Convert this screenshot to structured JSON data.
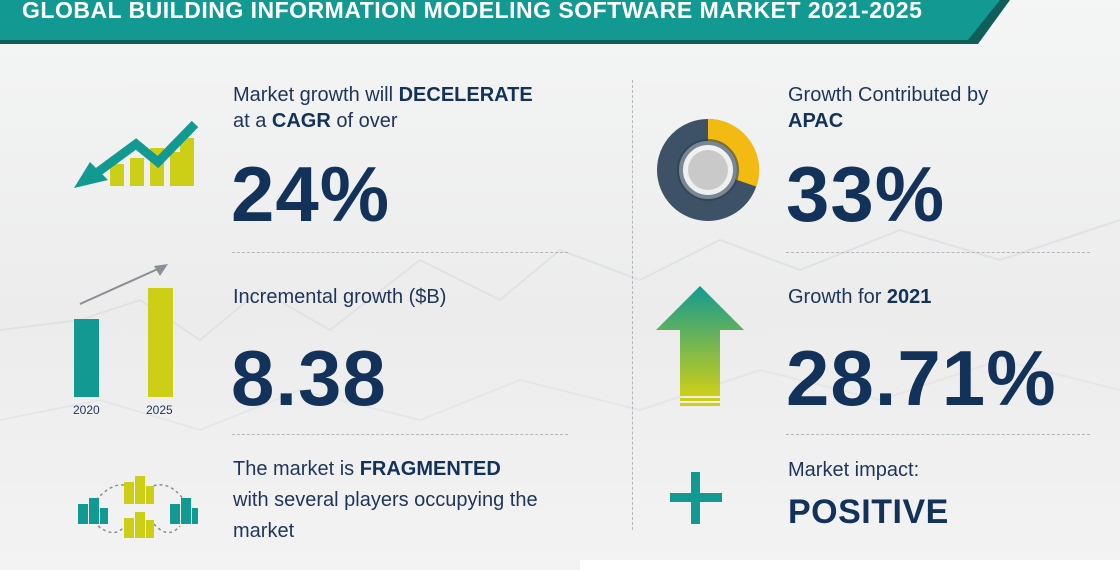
{
  "title": "GLOBAL BUILDING INFORMATION MODELING SOFTWARE MARKET 2021-2025",
  "colors": {
    "teal": "#129a92",
    "lime": "#cdcf17",
    "navy": "#12325a",
    "gold": "#f3bb11",
    "slate": "#3d5266"
  },
  "left": {
    "cagr": {
      "line1_pre": "Market growth will ",
      "line1_bold": "DECELERATE",
      "line2_pre": "at a ",
      "line2_bold": "CAGR",
      "line2_post": " of over",
      "value": "24%",
      "icon": "declining-trend-chart-icon"
    },
    "incremental": {
      "label": "Incremental growth ($B)",
      "value": "8.38",
      "year_start": "2020",
      "year_end": "2025",
      "icon": "growth-bar-chart-icon"
    },
    "structure": {
      "line1_pre": "The market is ",
      "line1_bold": "FRAGMENTED",
      "line2": "with several players occupying the",
      "line3": "market",
      "icon": "connected-buildings-icon"
    }
  },
  "right": {
    "region": {
      "line1": "Growth Contributed by",
      "line2_bold": "APAC",
      "value": "33%",
      "icon": "donut-chart-icon"
    },
    "yoy": {
      "label_pre": "Growth for ",
      "label_bold": "2021",
      "value": "28.71%",
      "icon": "up-arrow-icon"
    },
    "impact": {
      "label": "Market impact:",
      "value": "POSITIVE",
      "icon": "plus-icon"
    }
  }
}
